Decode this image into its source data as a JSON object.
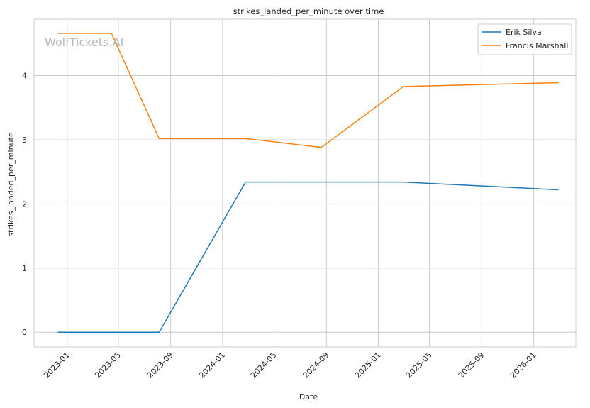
{
  "watermark": "WolfTickets.AI",
  "chart_data": {
    "type": "line",
    "title": "strikes_landed_per_minute over time",
    "xlabel": "Date",
    "ylabel": "strikes_landed_per_minute",
    "x_tick_labels": [
      "2023-01",
      "2023-05",
      "2023-09",
      "2024-01",
      "2024-05",
      "2024-09",
      "2025-01",
      "2025-05",
      "2025-09",
      "2026-01"
    ],
    "y_ticks": [
      0,
      1,
      2,
      3,
      4
    ],
    "xlim": [
      "2022-10-15",
      "2026-04-10"
    ],
    "ylim": [
      -0.23,
      4.88
    ],
    "grid": true,
    "legend_position": "top-right",
    "series": [
      {
        "name": "Erik Silva",
        "color": "#1f77b4",
        "x": [
          "2022-12-10",
          "2023-08-05",
          "2024-02-24",
          "2025-03-01",
          "2026-02-28"
        ],
        "y": [
          0.0,
          0.0,
          2.34,
          2.34,
          2.22
        ]
      },
      {
        "name": "Francis Marshall",
        "color": "#ff7f0e",
        "x": [
          "2022-12-10",
          "2023-04-15",
          "2023-08-05",
          "2024-02-24",
          "2024-08-20",
          "2025-03-01",
          "2026-02-28"
        ],
        "y": [
          4.66,
          4.66,
          3.02,
          3.02,
          2.88,
          3.83,
          3.89
        ]
      }
    ]
  }
}
